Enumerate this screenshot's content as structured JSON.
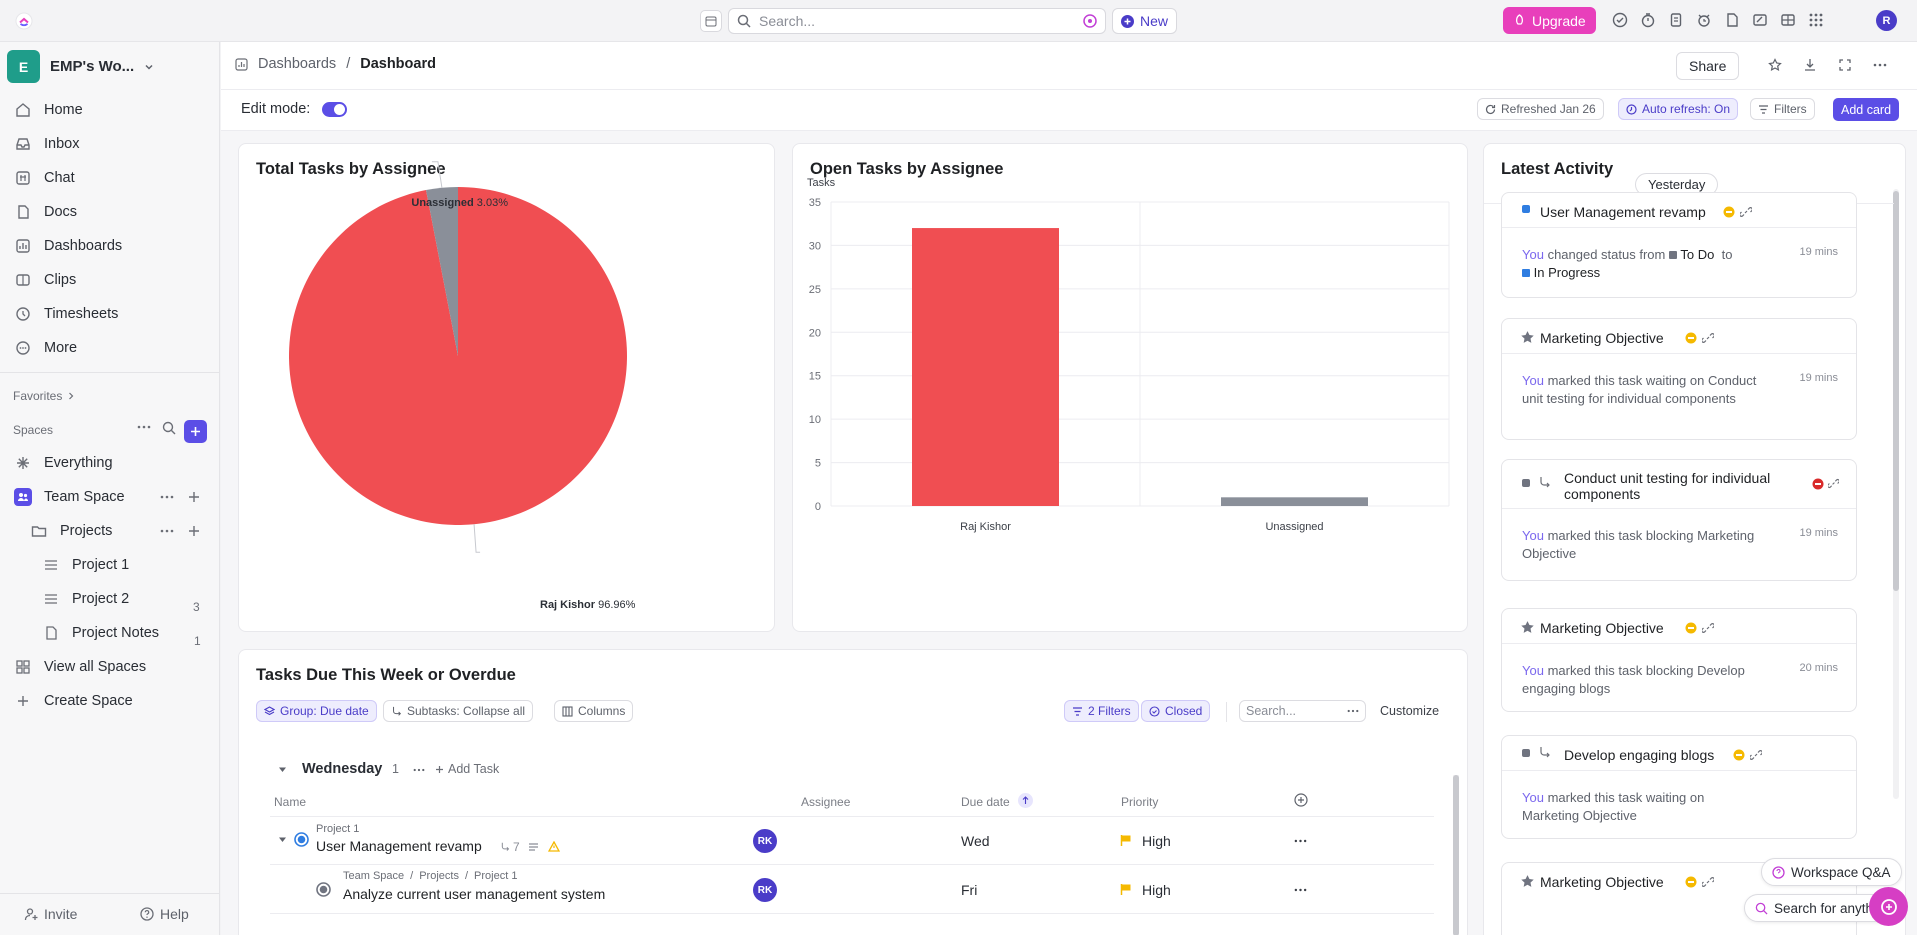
{
  "topbar": {
    "search_placeholder": "Search...",
    "new_label": "New",
    "upgrade_label": "Upgrade",
    "avatar_initial": "R"
  },
  "sidebar": {
    "workspace_initial": "E",
    "workspace_name": "EMP's Wo...",
    "nav": [
      {
        "label": "Home",
        "icon": "home-icon"
      },
      {
        "label": "Inbox",
        "icon": "inbox-icon"
      },
      {
        "label": "Chat",
        "icon": "chat-icon"
      },
      {
        "label": "Docs",
        "icon": "docs-icon"
      },
      {
        "label": "Dashboards",
        "icon": "dashboards-icon"
      },
      {
        "label": "Clips",
        "icon": "clips-icon"
      },
      {
        "label": "Timesheets",
        "icon": "timesheets-icon"
      },
      {
        "label": "More",
        "icon": "more-icon"
      }
    ],
    "favorites_label": "Favorites",
    "spaces_label": "Spaces",
    "everything_label": "Everything",
    "team_space_label": "Team Space",
    "projects_label": "Projects",
    "lists": [
      {
        "label": "Project 1",
        "count": "3"
      },
      {
        "label": "Project 2",
        "count": "1"
      },
      {
        "label": "Project Notes",
        "count": ""
      }
    ],
    "view_all_spaces": "View all Spaces",
    "create_space": "Create Space",
    "invite_label": "Invite",
    "help_label": "Help"
  },
  "header": {
    "breadcrumb_parent": "Dashboards",
    "breadcrumb_sep": "/",
    "breadcrumb_current": "Dashboard",
    "share_label": "Share"
  },
  "toolbar": {
    "edit_mode_label": "Edit mode:",
    "refreshed_label": "Refreshed Jan 26",
    "auto_refresh_label": "Auto refresh: On",
    "filters_label": "Filters",
    "add_card_label": "Add card"
  },
  "pie_card": {
    "title": "Total Tasks by Assignee",
    "slices": [
      {
        "name": "Raj Kishor",
        "pct": "96.96%",
        "value": 96.96,
        "color": "#f04e52"
      },
      {
        "name": "Unassigned",
        "pct": "3.03%",
        "value": 3.03,
        "color": "#8a8f99"
      }
    ]
  },
  "bar_card": {
    "title": "Open Tasks by Assignee"
  },
  "chart_data": [
    {
      "type": "pie",
      "title": "Total Tasks by Assignee",
      "categories": [
        "Raj Kishor",
        "Unassigned"
      ],
      "values": [
        96.96,
        3.03
      ],
      "labels": [
        "96.96%",
        "3.03%"
      ],
      "colors": [
        "#f04e52",
        "#8a8f99"
      ]
    },
    {
      "type": "bar",
      "title": "Open Tasks by Assignee",
      "ylabel": "Tasks",
      "categories": [
        "Raj Kishor",
        "Unassigned"
      ],
      "values": [
        32,
        1
      ],
      "colors": [
        "#f04e52",
        "#8a8f99"
      ],
      "ylim": [
        0,
        35
      ],
      "yticks": [
        0,
        5,
        10,
        15,
        20,
        25,
        30,
        35
      ],
      "grid": true
    }
  ],
  "activity": {
    "title": "Latest Activity",
    "day_label": "Yesterday",
    "items": [
      {
        "title": "User Management revamp",
        "body_you": "You",
        "body": "changed status from",
        "from": "To Do",
        "to_word": "to",
        "to": "In Progress",
        "time": "19 mins"
      },
      {
        "title": "Marketing Objective",
        "body_you": "You",
        "body": "marked this task waiting on Conduct unit testing for individual components",
        "time": "19 mins"
      },
      {
        "title": "Conduct unit testing for individual components",
        "body_you": "You",
        "body": "marked this task blocking Marketing Objective",
        "time": "19 mins"
      },
      {
        "title": "Marketing Objective",
        "body_you": "You",
        "body": "marked this task blocking Develop engaging blogs",
        "time": "20 mins"
      },
      {
        "title": "Develop engaging blogs",
        "body_you": "You",
        "body": "marked this task waiting on Marketing Objective",
        "time": ""
      },
      {
        "title": "Marketing Objective"
      }
    ]
  },
  "tasks_card": {
    "title": "Tasks Due This Week or Overdue",
    "group_chip": "Group: Due date",
    "subtasks_chip": "Subtasks: Collapse all",
    "columns_chip": "Columns",
    "filters_chip": "2 Filters",
    "closed_chip": "Closed",
    "search_placeholder": "Search...",
    "customize_label": "Customize",
    "group_name": "Wednesday",
    "group_count": "1",
    "add_task": "Add Task",
    "headers": {
      "name": "Name",
      "assignee": "Assignee",
      "due": "Due date",
      "priority": "Priority"
    },
    "rows": [
      {
        "crumb": [
          "Project 1"
        ],
        "name": "User Management revamp",
        "subtasks": "7",
        "assignee": "RK",
        "due": "Wed",
        "priority": "High"
      },
      {
        "crumb": [
          "Team Space",
          "Projects",
          "Project 1"
        ],
        "name": "Analyze current user management system",
        "assignee": "RK",
        "due": "Fri",
        "priority": "High"
      }
    ]
  },
  "floating": {
    "workspace_qa": "Workspace Q&A",
    "search_anything": "Search for anything"
  },
  "colors": {
    "accent": "#5b4ee6",
    "upgrade": "#e83fbb",
    "danger": "#f04e52",
    "gray": "#8a8f99",
    "priority": "#f5b900"
  }
}
